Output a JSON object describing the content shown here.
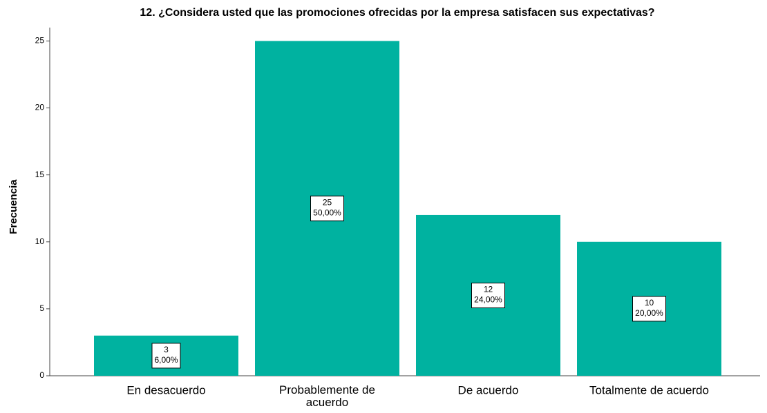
{
  "chart_data": {
    "type": "bar",
    "title": "12. ¿Considera usted que las promociones ofrecidas por la empresa satisfacen sus expectativas?",
    "y_label": "Frecuencia",
    "categories": [
      "En desacuerdo",
      "Probablemente de acuerdo",
      "De acuerdo",
      "Totalmente de acuerdo"
    ],
    "values": [
      3,
      25,
      12,
      10
    ],
    "percentages": [
      6,
      50,
      24,
      20
    ],
    "percentage_labels": [
      "6,00%",
      "50,00%",
      "24,00%",
      "20,00%"
    ],
    "color": "#00b2a0",
    "ylim": [
      0,
      26
    ],
    "yticks": [
      0,
      5,
      10,
      15,
      20,
      25
    ],
    "grid": false
  }
}
